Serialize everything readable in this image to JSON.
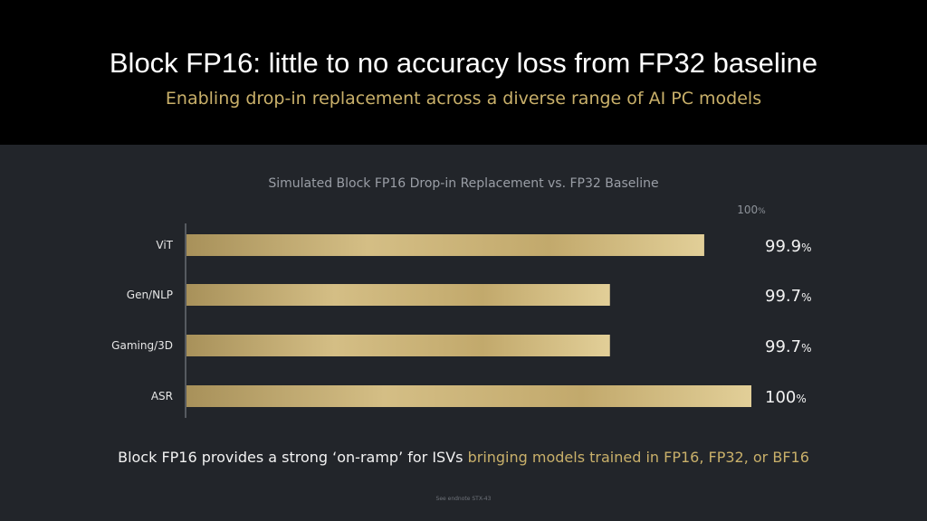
{
  "header": {
    "title": "Block FP16: little to no accuracy loss from FP32 baseline",
    "subtitle": "Enabling drop-in replacement across a diverse range of AI PC models"
  },
  "chart_data": {
    "type": "bar",
    "orientation": "horizontal",
    "title": "Simulated Block FP16 Drop-in Replacement vs. FP32 Baseline",
    "categories": [
      "ViT",
      "Gen/NLP",
      "Gaming/3D",
      "ASR"
    ],
    "values": [
      99.9,
      99.7,
      99.7,
      100
    ],
    "value_labels": [
      "99.9",
      "99.7",
      "99.7",
      "100"
    ],
    "unit": "%",
    "reference_label": "100",
    "xlim": [
      98.8,
      100
    ],
    "bar_color": "#c9b06a",
    "grid": false
  },
  "footer": {
    "text_white": "Block FP16 provides a strong ‘on-ramp’ for ISVs ",
    "text_gold": "bringing models trained in FP16, FP32, or BF16"
  },
  "note": "See endnote STX-43"
}
